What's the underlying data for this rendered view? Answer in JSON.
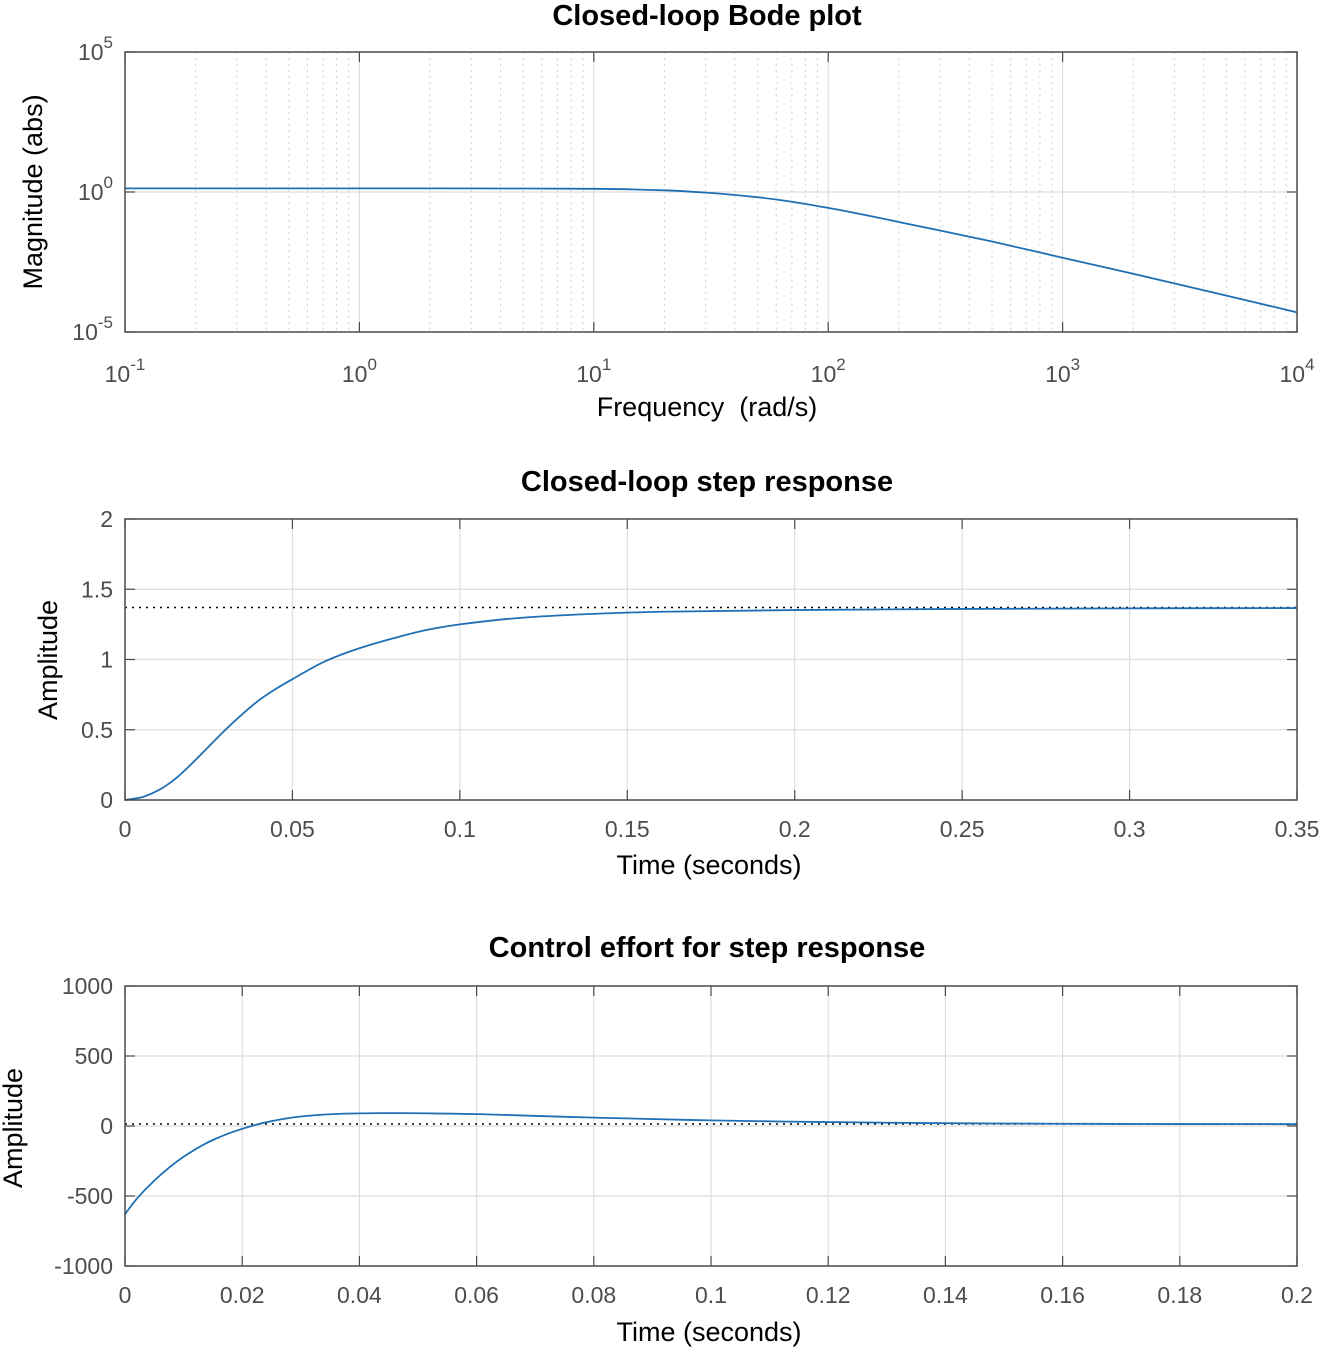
{
  "chart_data": [
    {
      "type": "line",
      "title": "Closed-loop Bode plot",
      "xlabel": "Frequency  (rad/s)",
      "ylabel": "Magnitude (abs)",
      "xscale": "log",
      "yscale": "log",
      "xlim": [
        0.1,
        10000
      ],
      "ylim": [
        1e-05,
        100000
      ],
      "grid": true,
      "xticks": [
        {
          "base": "10",
          "exp": "-1"
        },
        {
          "base": "10",
          "exp": "0"
        },
        {
          "base": "10",
          "exp": "1"
        },
        {
          "base": "10",
          "exp": "2"
        },
        {
          "base": "10",
          "exp": "3"
        },
        {
          "base": "10",
          "exp": "4"
        }
      ],
      "yticks": [
        {
          "base": "10",
          "exp": "5"
        },
        {
          "base": "10",
          "exp": "0"
        },
        {
          "base": "10",
          "exp": "-5"
        }
      ],
      "color": "#1f6fb5",
      "series": [
        {
          "x": [
            0.1,
            1,
            5,
            10,
            20,
            30,
            50,
            70,
            100,
            150,
            200,
            300,
            500,
            1000,
            2000,
            5000,
            10000
          ],
          "y": [
            1.35,
            1.35,
            1.33,
            1.3,
            1.15,
            0.95,
            0.65,
            0.45,
            0.27,
            0.14,
            0.085,
            0.042,
            0.017,
            0.0045,
            0.0012,
            0.0002,
            5e-05
          ]
        }
      ]
    },
    {
      "type": "line",
      "title": "Closed-loop step response",
      "xlabel": "Time (seconds)",
      "ylabel": "Amplitude",
      "xlim": [
        0,
        0.35
      ],
      "ylim": [
        0,
        2
      ],
      "grid": true,
      "xticks": [
        "0",
        "0.05",
        "0.1",
        "0.15",
        "0.2",
        "0.25",
        "0.3",
        "0.35"
      ],
      "yticks": [
        "0",
        "0.5",
        "1",
        "1.5",
        "2"
      ],
      "reference_line": 1.37,
      "color": "#1f6fb5",
      "series": [
        {
          "x": [
            0,
            0.005,
            0.01,
            0.015,
            0.02,
            0.025,
            0.03,
            0.035,
            0.04,
            0.045,
            0.05,
            0.06,
            0.07,
            0.08,
            0.09,
            0.1,
            0.12,
            0.14,
            0.16,
            0.2,
            0.25,
            0.3,
            0.35
          ],
          "y": [
            0,
            0.02,
            0.07,
            0.15,
            0.26,
            0.38,
            0.5,
            0.61,
            0.71,
            0.79,
            0.86,
            0.99,
            1.08,
            1.15,
            1.21,
            1.25,
            1.3,
            1.325,
            1.34,
            1.352,
            1.36,
            1.364,
            1.366
          ]
        }
      ]
    },
    {
      "type": "line",
      "title": "Control effort for step response",
      "xlabel": "Time (seconds)",
      "ylabel": "Amplitude",
      "xlim": [
        0,
        0.2
      ],
      "ylim": [
        -1000,
        1000
      ],
      "grid": true,
      "xticks": [
        "0",
        "0.02",
        "0.04",
        "0.06",
        "0.08",
        "0.1",
        "0.12",
        "0.14",
        "0.16",
        "0.18",
        "0.2"
      ],
      "yticks": [
        "1000",
        "500",
        "0",
        "-500",
        "-1000"
      ],
      "reference_line": 14,
      "color": "#1f6fb5",
      "series": [
        {
          "x": [
            0,
            0.002,
            0.005,
            0.01,
            0.015,
            0.02,
            0.025,
            0.03,
            0.035,
            0.04,
            0.045,
            0.05,
            0.06,
            0.07,
            0.08,
            0.1,
            0.12,
            0.14,
            0.16,
            0.18,
            0.2
          ],
          "y": [
            -630,
            -520,
            -390,
            -220,
            -100,
            -20,
            35,
            68,
            84,
            90,
            92,
            91,
            85,
            72,
            60,
            40,
            28,
            20,
            16,
            14,
            13
          ]
        }
      ]
    }
  ]
}
